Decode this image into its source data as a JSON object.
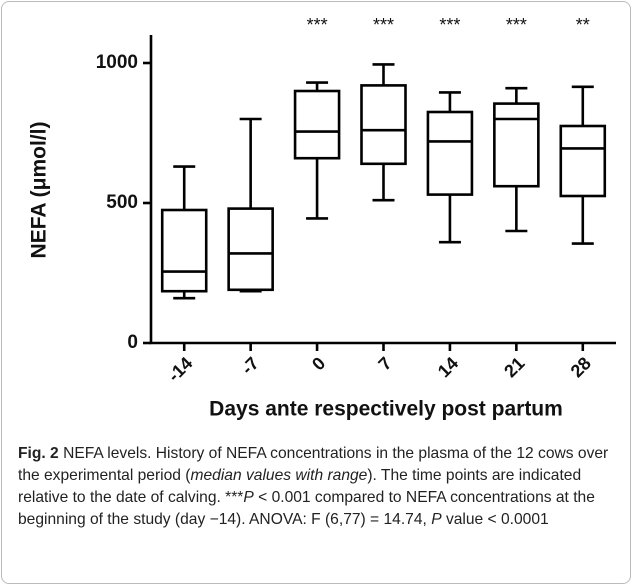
{
  "chart_data": {
    "type": "box",
    "y_label": "NEFA (μmol/l)",
    "x_label": "Days ante respectively post partum",
    "categories": [
      "-14",
      "-7",
      "0",
      "7",
      "14",
      "21",
      "28"
    ],
    "min": [
      160,
      185,
      445,
      510,
      360,
      400,
      355
    ],
    "q1": [
      185,
      190,
      660,
      640,
      530,
      560,
      525
    ],
    "median": [
      255,
      320,
      755,
      760,
      720,
      800,
      695
    ],
    "q3": [
      475,
      480,
      900,
      920,
      825,
      855,
      775
    ],
    "max": [
      630,
      800,
      930,
      995,
      895,
      910,
      915
    ],
    "annotations": [
      null,
      null,
      "***",
      "***",
      "***",
      "***",
      "**"
    ],
    "color": "#000000",
    "ylim": [
      0,
      1100
    ],
    "yticks": [
      0,
      500,
      1000
    ],
    "grid": false
  },
  "caption": {
    "label": "Fig. 2",
    "parts": [
      " NEFA levels. History of NEFA concentrations in the plasma of the 12 cows over the experimental period (",
      "median values with range",
      "). The time points are indicated relative to the date of calving. ***",
      "P",
      " < 0.001 compared to NEFA concentrations at the beginning of the study (day −14). ANOVA: F (6,77) = 14.74, ",
      "P",
      " value < 0.0001"
    ]
  }
}
